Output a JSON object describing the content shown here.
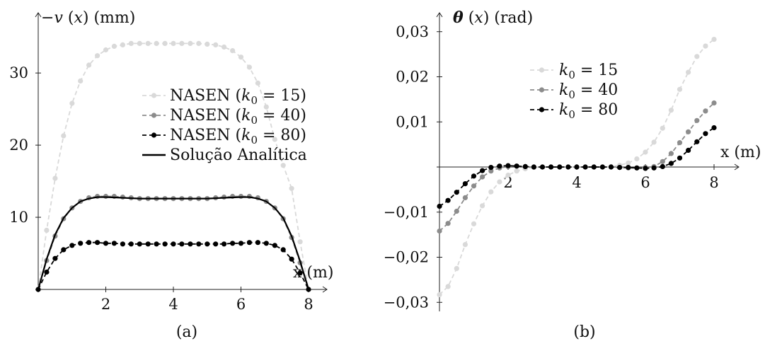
{
  "chart_data": [
    {
      "type": "line",
      "panel_label": "(a)",
      "ylabel": "−v (x) (mm)",
      "xlabel": "x (m)",
      "xlim": [
        0,
        8
      ],
      "ylim": [
        0,
        36
      ],
      "xticks": [
        2,
        4,
        6,
        8
      ],
      "yticks": [
        10,
        20,
        30
      ],
      "xtick_labels": [
        "2",
        "4",
        "6",
        "8"
      ],
      "ytick_labels": [
        "10",
        "20",
        "30"
      ],
      "legend": {
        "placement": "center-right"
      },
      "series": [
        {
          "name": "NASEN (k0 = 15)",
          "legend_prefix": "NASEN (",
          "legend_k": "k",
          "legend_sub": "0",
          "legend_suffix": " = 15)",
          "style": "dashed-markers",
          "color": "#d9d9d9",
          "x": [
            0,
            0.25,
            0.5,
            0.75,
            1.0,
            1.25,
            1.5,
            1.75,
            2.0,
            2.25,
            2.5,
            2.75,
            3.0,
            3.25,
            3.5,
            3.75,
            4.0,
            4.25,
            4.5,
            4.75,
            5.0,
            5.25,
            5.5,
            5.75,
            6.0,
            6.25,
            6.5,
            6.75,
            7.0,
            7.25,
            7.5,
            7.75,
            8.0
          ],
          "y": [
            0,
            8.2,
            15.4,
            21.3,
            25.8,
            28.9,
            31.1,
            32.4,
            33.2,
            33.7,
            33.9,
            34.1,
            34.1,
            34.1,
            34.1,
            34.1,
            34.1,
            34.1,
            34.1,
            34.1,
            34.0,
            33.9,
            33.6,
            33.1,
            32.2,
            30.8,
            28.6,
            25.3,
            20.8,
            17.2,
            14.0,
            6.6,
            0
          ]
        },
        {
          "name": "NASEN (k0 = 40)",
          "legend_prefix": "NASEN (",
          "legend_k": "k",
          "legend_sub": "0",
          "legend_suffix": " = 40)",
          "style": "dashed-markers",
          "color": "#8c8c8c",
          "x": [
            0,
            0.25,
            0.5,
            0.75,
            1.0,
            1.25,
            1.5,
            1.75,
            2.0,
            2.25,
            2.5,
            2.75,
            3.0,
            3.25,
            3.5,
            3.75,
            4.0,
            4.25,
            4.5,
            4.75,
            5.0,
            5.25,
            5.5,
            5.75,
            6.0,
            6.25,
            6.5,
            6.75,
            7.0,
            7.25,
            7.5,
            7.75,
            8.0
          ],
          "y": [
            0,
            4.0,
            7.4,
            9.8,
            11.3,
            12.2,
            12.7,
            12.9,
            12.9,
            12.9,
            12.8,
            12.7,
            12.6,
            12.6,
            12.6,
            12.6,
            12.6,
            12.6,
            12.6,
            12.6,
            12.6,
            12.7,
            12.8,
            12.9,
            12.9,
            12.9,
            12.7,
            12.2,
            11.3,
            9.8,
            7.2,
            3.7,
            0
          ]
        },
        {
          "name": "NASEN (k0 = 80)",
          "legend_prefix": "NASEN (",
          "legend_k": "k",
          "legend_sub": "0",
          "legend_suffix": " = 80)",
          "style": "dashed-markers",
          "color": "#000000",
          "x": [
            0,
            0.25,
            0.5,
            0.75,
            1.0,
            1.25,
            1.5,
            1.75,
            2.0,
            2.25,
            2.5,
            2.75,
            3.0,
            3.25,
            3.5,
            3.75,
            4.0,
            4.25,
            4.5,
            4.75,
            5.0,
            5.25,
            5.5,
            5.75,
            6.0,
            6.25,
            6.5,
            6.75,
            7.0,
            7.25,
            7.5,
            7.75,
            8.0
          ],
          "y": [
            0,
            2.4,
            4.3,
            5.5,
            6.1,
            6.4,
            6.5,
            6.5,
            6.4,
            6.4,
            6.3,
            6.3,
            6.3,
            6.3,
            6.3,
            6.3,
            6.3,
            6.3,
            6.3,
            6.3,
            6.3,
            6.3,
            6.3,
            6.4,
            6.4,
            6.5,
            6.5,
            6.4,
            6.1,
            5.5,
            4.2,
            2.3,
            0
          ]
        },
        {
          "name": "Solução Analítica",
          "legend_prefix": "Solução Analítica",
          "style": "solid",
          "color": "#000000",
          "x": [
            0,
            0.25,
            0.5,
            0.75,
            1.0,
            1.25,
            1.5,
            1.75,
            2.0,
            2.5,
            3.0,
            3.5,
            4.0,
            4.5,
            5.0,
            5.5,
            6.0,
            6.25,
            6.5,
            6.75,
            7.0,
            7.25,
            7.5,
            7.75,
            8.0
          ],
          "y": [
            0,
            4.2,
            7.6,
            9.9,
            11.3,
            12.2,
            12.6,
            12.8,
            12.8,
            12.7,
            12.6,
            12.6,
            12.6,
            12.6,
            12.6,
            12.7,
            12.8,
            12.8,
            12.6,
            12.2,
            11.3,
            9.9,
            7.4,
            3.9,
            0
          ]
        }
      ]
    },
    {
      "type": "line",
      "panel_label": "(b)",
      "ylabel": "θ (x) (rad)",
      "xlabel": "x (m)",
      "xlim": [
        0,
        8
      ],
      "ylim": [
        -0.032,
        0.032
      ],
      "xticks": [
        2,
        4,
        6,
        8
      ],
      "yticks": [
        -0.03,
        -0.02,
        -0.01,
        0.01,
        0.02,
        0.03
      ],
      "xtick_labels": [
        "2",
        "4",
        "6",
        "8"
      ],
      "ytick_labels": [
        "−0,03",
        "−0,02",
        "−0,01",
        "0,01",
        "0,02",
        "0,03"
      ],
      "legend": {
        "placement": "top-center"
      },
      "series": [
        {
          "name": "k0 = 15",
          "legend_k": "k",
          "legend_sub": "0",
          "legend_suffix": " = 15",
          "style": "dashed-markers",
          "color": "#d9d9d9",
          "x": [
            0,
            0.25,
            0.5,
            0.75,
            1.0,
            1.25,
            1.5,
            1.75,
            2.0,
            2.25,
            2.5,
            2.75,
            3.0,
            3.25,
            3.5,
            3.75,
            4.0,
            4.25,
            4.5,
            4.75,
            5.0,
            5.25,
            5.5,
            5.75,
            6.0,
            6.25,
            6.5,
            6.75,
            7.0,
            7.25,
            7.5,
            7.75,
            8.0
          ],
          "y": [
            -0.0283,
            -0.0265,
            -0.0225,
            -0.0172,
            -0.0126,
            -0.0086,
            -0.0055,
            -0.0033,
            -0.0018,
            -0.0009,
            -0.0004,
            -0.0001,
            0.0,
            0.0,
            0.0,
            0.0,
            0.0,
            0.0,
            0.0,
            0.0,
            0.0001,
            0.0004,
            0.0009,
            0.0018,
            0.0033,
            0.0055,
            0.0086,
            0.0126,
            0.0172,
            0.021,
            0.0245,
            0.0268,
            0.0283
          ]
        },
        {
          "name": "k0 = 40",
          "legend_k": "k",
          "legend_sub": "0",
          "legend_suffix": " = 40",
          "style": "dashed-markers",
          "color": "#8c8c8c",
          "x": [
            0,
            0.25,
            0.5,
            0.75,
            1.0,
            1.25,
            1.5,
            1.75,
            2.0,
            2.25,
            2.5,
            2.75,
            3.0,
            3.25,
            3.5,
            3.75,
            4.0,
            4.25,
            4.5,
            4.75,
            5.0,
            5.25,
            5.5,
            5.75,
            6.0,
            6.25,
            6.5,
            6.75,
            7.0,
            7.25,
            7.5,
            7.75,
            8.0
          ],
          "y": [
            -0.0142,
            -0.0125,
            -0.0098,
            -0.0068,
            -0.0042,
            -0.0022,
            -0.0009,
            -0.0002,
            0.0001,
            0.0002,
            0.0001,
            0.0,
            0.0,
            0.0,
            0.0,
            0.0,
            0.0,
            0.0,
            0.0,
            0.0,
            0.0,
            -0.0001,
            -0.0002,
            -0.0002,
            -0.0001,
            0.0001,
            0.0012,
            0.003,
            0.0054,
            0.0078,
            0.0103,
            0.0124,
            0.0142
          ]
        },
        {
          "name": "k0 = 80",
          "legend_k": "k",
          "legend_sub": "0",
          "legend_suffix": " = 80",
          "style": "dashed-markers",
          "color": "#000000",
          "x": [
            0,
            0.25,
            0.5,
            0.75,
            1.0,
            1.25,
            1.5,
            1.75,
            2.0,
            2.25,
            2.5,
            2.75,
            3.0,
            3.25,
            3.5,
            3.75,
            4.0,
            4.25,
            4.5,
            4.75,
            5.0,
            5.25,
            5.5,
            5.75,
            6.0,
            6.25,
            6.5,
            6.75,
            7.0,
            7.25,
            7.5,
            7.75,
            8.0
          ],
          "y": [
            -0.0087,
            -0.0074,
            -0.0056,
            -0.0037,
            -0.002,
            -0.0008,
            -0.0001,
            0.0002,
            0.0003,
            0.0002,
            0.0001,
            0.0,
            0.0,
            0.0,
            0.0,
            0.0,
            0.0,
            0.0,
            0.0,
            0.0,
            0.0,
            -0.0001,
            -0.0001,
            -0.0002,
            -0.0003,
            -0.0002,
            0.0001,
            0.0008,
            0.002,
            0.0037,
            0.0056,
            0.0074,
            0.0087
          ]
        }
      ]
    }
  ]
}
